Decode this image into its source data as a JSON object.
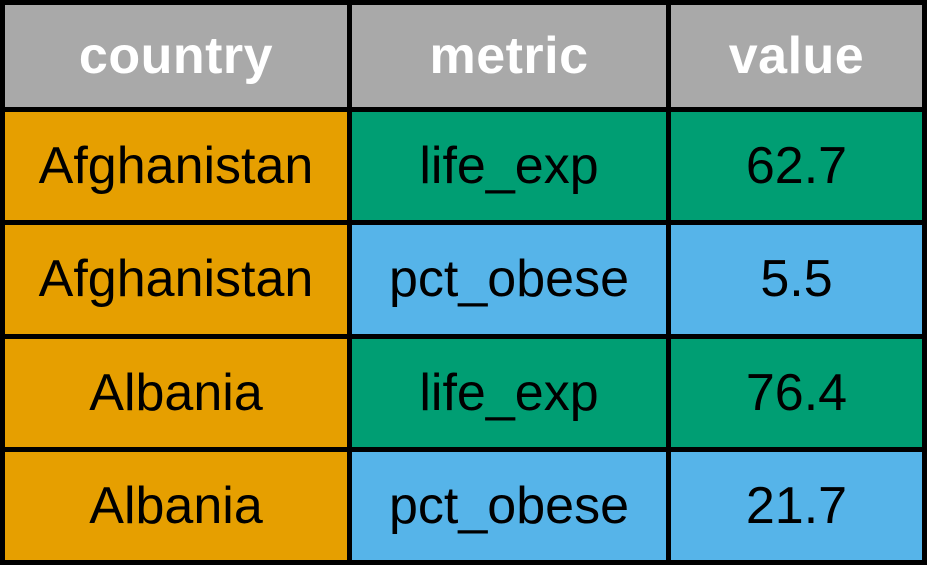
{
  "chart_data": {
    "type": "table",
    "columns": [
      "country",
      "metric",
      "value"
    ],
    "rows": [
      {
        "country": "Afghanistan",
        "metric": "life_exp",
        "value": "62.7"
      },
      {
        "country": "Afghanistan",
        "metric": "pct_obese",
        "value": "5.5"
      },
      {
        "country": "Albania",
        "metric": "life_exp",
        "value": "76.4"
      },
      {
        "country": "Albania",
        "metric": "pct_obese",
        "value": "21.7"
      }
    ],
    "colors": {
      "header_bg": "#a9a9a9",
      "header_text": "#ffffff",
      "country_bg": "#e69f00",
      "life_exp_bg": "#009e73",
      "pct_obese_bg": "#56b4e9",
      "grid": "#000000"
    }
  }
}
